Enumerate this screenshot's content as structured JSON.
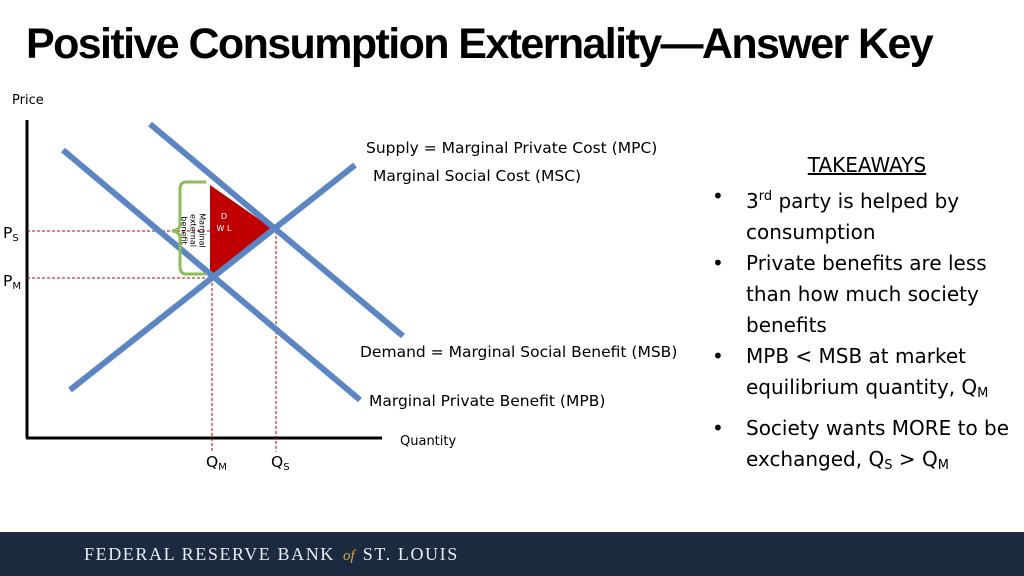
{
  "title": "Positive Consumption Externality—Answer Key",
  "graph": {
    "y_axis_label": "Price",
    "x_axis_label": "Quantity",
    "supply_label": "Supply = Marginal Private Cost (MPC)",
    "msc_label": "Marginal Social Cost (MSC)",
    "demand_label": "Demand = Marginal Social Benefit (MSB)",
    "mpb_label": "Marginal Private Benefit (MPB)",
    "ps_main": "P",
    "ps_sub": "S",
    "pm_main": "P",
    "pm_sub": "M",
    "qm_main": "Q",
    "qm_sub": "M",
    "qs_main": "Q",
    "qs_sub": "S",
    "dwl_label": "D W L",
    "external_benefit_label": "Marginal external benefit",
    "colors": {
      "curve": "#5b86c3",
      "dwl": "#c00000",
      "dashed": "#c00000",
      "brace": "#8cbd5a"
    }
  },
  "takeaways": {
    "heading": "TAKEAWAYS",
    "b1_pre": "3",
    "b1_sup": "rd",
    "b1_post": " party is helped by consumption",
    "b2": "Private benefits are less than how much society benefits",
    "b3_text": "MPB < MSB at market equilibrium quantity, Q",
    "b3_sub": "M",
    "b4_text": "Society wants MORE to be exchanged, Q",
    "b4_sub1": "S",
    "b4_mid": " > Q",
    "b4_sub2": "M"
  },
  "footer": {
    "pre": "FEDERAL RESERVE BANK",
    "of": "of",
    "post": "ST. LOUIS"
  }
}
